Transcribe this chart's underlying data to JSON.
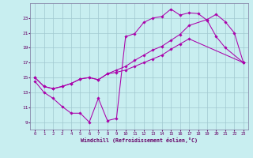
{
  "background_color": "#c8eef0",
  "grid_color": "#a0c8d0",
  "line_color": "#aa00aa",
  "xlabel": "Windchill (Refroidissement éolien,°C)",
  "xlim": [
    -0.5,
    23.5
  ],
  "ylim": [
    8.0,
    25.0
  ],
  "yticks": [
    9,
    11,
    13,
    15,
    17,
    19,
    21,
    23
  ],
  "xticks": [
    0,
    1,
    2,
    3,
    4,
    5,
    6,
    7,
    8,
    9,
    10,
    11,
    12,
    13,
    14,
    15,
    16,
    17,
    18,
    19,
    20,
    21,
    22,
    23
  ],
  "line1_x": [
    0,
    1,
    2,
    3,
    4,
    5,
    6,
    7,
    8,
    9,
    10,
    11,
    12,
    13,
    14,
    15,
    16,
    17,
    18,
    19,
    20,
    21,
    23
  ],
  "line1_y": [
    14.5,
    13.0,
    12.2,
    11.1,
    10.2,
    10.2,
    9.0,
    12.2,
    9.2,
    9.5,
    20.5,
    20.9,
    22.4,
    23.0,
    23.2,
    24.2,
    23.4,
    23.7,
    23.6,
    22.7,
    20.5,
    19.0,
    17.0
  ],
  "line2_x": [
    0,
    1,
    2,
    3,
    4,
    5,
    6,
    7,
    8,
    9,
    10,
    11,
    12,
    13,
    14,
    15,
    16,
    17,
    19,
    20,
    21,
    22,
    23
  ],
  "line2_y": [
    15.0,
    13.8,
    13.5,
    13.8,
    14.2,
    14.8,
    15.0,
    14.7,
    15.5,
    16.0,
    16.5,
    17.3,
    18.0,
    18.7,
    19.2,
    20.0,
    20.8,
    22.0,
    22.8,
    23.5,
    22.5,
    21.0,
    17.0
  ],
  "line3_x": [
    0,
    1,
    2,
    3,
    4,
    5,
    6,
    7,
    8,
    9,
    10,
    11,
    12,
    13,
    14,
    15,
    16,
    17,
    23
  ],
  "line3_y": [
    15.0,
    13.8,
    13.5,
    13.8,
    14.2,
    14.8,
    15.0,
    14.7,
    15.5,
    15.7,
    16.0,
    16.5,
    17.0,
    17.5,
    18.0,
    18.8,
    19.5,
    20.2,
    17.0
  ]
}
